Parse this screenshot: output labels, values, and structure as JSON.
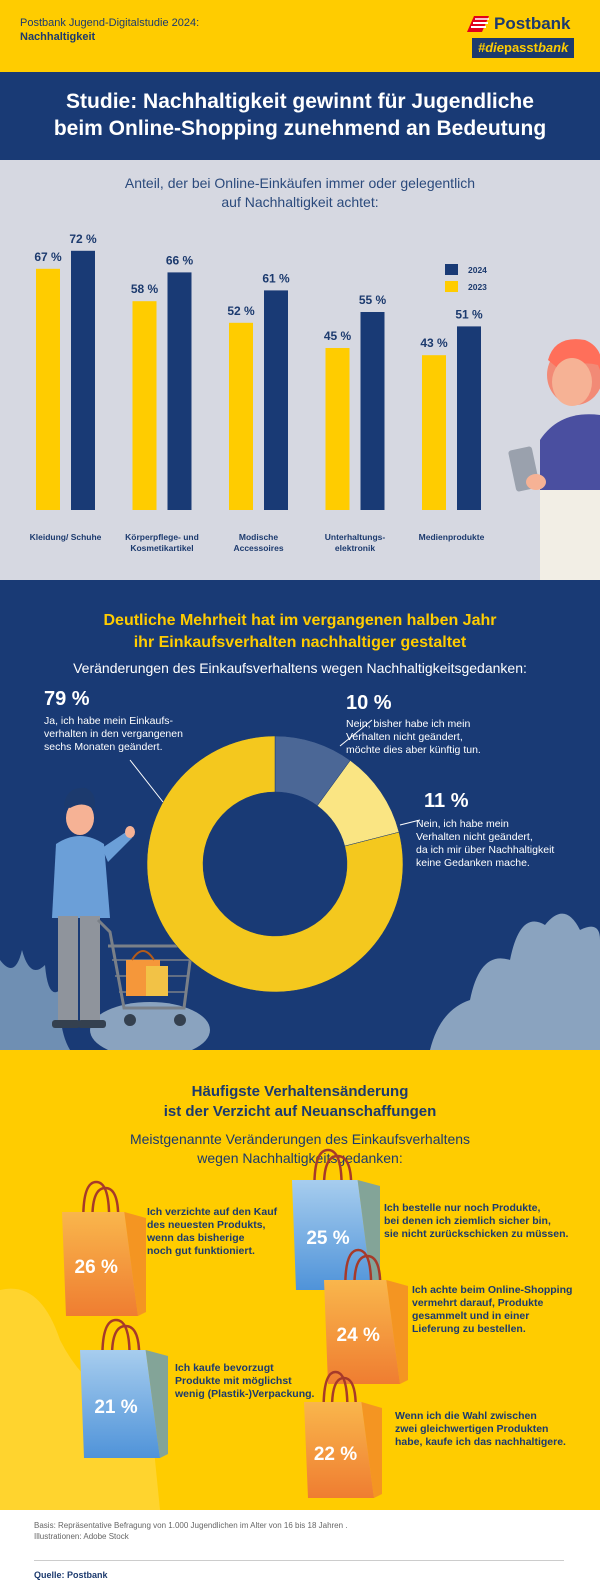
{
  "header": {
    "study": "Postbank Jugend-Digitalstudie 2024:",
    "topic": "Nachhaltigkeit",
    "logo_name": "Postbank",
    "logo_tag_pre": "#die",
    "logo_tag_bold": "passt",
    "logo_tag_post": "bank"
  },
  "title": {
    "line1": "Studie: Nachhaltigkeit gewinnt für Jugendliche",
    "line2": "beim Online-Shopping zunehmend an Bedeutung"
  },
  "section1": {
    "sub_line1": "Anteil, der bei Online-Einkäufen immer oder gelegentlich",
    "sub_line2": "auf Nachhaltigkeit achtet:"
  },
  "section2": {
    "title_line1": "Deutliche Mehrheit hat im vergangenen halben Jahr",
    "title_line2": "ihr Einkaufsverhalten nachhaltiger gestaltet",
    "sub": "Veränderungen des Einkaufsverhaltens wegen Nachhaltigkeitsgedanken:"
  },
  "section3": {
    "title_line1": "Häufigste Verhaltensänderung",
    "title_line2": "ist der Verzicht auf Neuanschaffungen",
    "sub_line1": "Meistgenannte Veränderungen des Einkaufsverhaltens",
    "sub_line2": "wegen Nachhaltigkeitsgedanken:"
  },
  "footer": {
    "basis": "Basis: Repräsentative Befragung von 1.000 Jugendlichen im Alter von 16 bis 18 Jahren .",
    "illustrations": "Illustrationen: Adobe Stock",
    "source": "Quelle: Postbank"
  },
  "colors": {
    "navy": "#193a75",
    "yellow": "#ffcc00",
    "bar2023": "#ffcc00",
    "bar2024": "#193a75",
    "donut_main": "#f4c81e",
    "donut_future": "#4b6796",
    "donut_no_thought": "#fae583"
  },
  "chart_data": [
    {
      "type": "bar",
      "title": "Anteil, der bei Online-Einkäufen immer oder gelegentlich auf Nachhaltigkeit achtet:",
      "categories": [
        [
          "Kleidung/ Schuhe"
        ],
        [
          "Körperpflege- und",
          "Kosmetikartikel"
        ],
        [
          "Modische",
          "Accessoires"
        ],
        [
          "Unterhaltungs-",
          "elektronik"
        ],
        [
          "Medienprodukte"
        ]
      ],
      "series": [
        {
          "name": "2023",
          "values": [
            67,
            58,
            52,
            45,
            43
          ]
        },
        {
          "name": "2024",
          "values": [
            72,
            66,
            61,
            55,
            51
          ]
        }
      ],
      "unit": " %",
      "ylim": [
        0,
        80
      ],
      "legend": "top-right",
      "grid": false
    },
    {
      "type": "pie",
      "title": "Veränderungen des Einkaufsverhaltens wegen Nachhaltigkeitsgedanken:",
      "slices": [
        {
          "value": 10,
          "label": "10 %",
          "lines": [
            "Nein, bisher habe ich mein",
            "Verhalten nicht geändert,",
            "möchte dies aber künftig tun."
          ]
        },
        {
          "value": 11,
          "label": "11 %",
          "lines": [
            "Nein, ich habe mein",
            "Verhalten nicht geändert,",
            "da ich mir über Nachhaltigkeit",
            "keine Gedanken mache."
          ]
        },
        {
          "value": 79,
          "label": "79 %",
          "lines": [
            "Ja, ich habe mein Einkaufs-",
            "verhalten in den vergangenen",
            "sechs Monaten geändert."
          ]
        }
      ]
    },
    {
      "type": "table",
      "title": "Meistgenannte Veränderungen des Einkaufsverhaltens wegen Nachhaltigkeitsgedanken:",
      "items": [
        {
          "value": 26,
          "label": "26 %",
          "lines": [
            "Ich verzichte auf den Kauf",
            "des neuesten Produkts,",
            "wenn das bisherige",
            "noch gut funktioniert."
          ]
        },
        {
          "value": 25,
          "label": "25 %",
          "lines": [
            "Ich bestelle nur noch Produkte,",
            "bei denen ich ziemlich sicher bin,",
            "sie nicht zurückschicken zu müssen."
          ]
        },
        {
          "value": 24,
          "label": "24 %",
          "lines": [
            "Ich achte beim Online-Shopping",
            "vermehrt darauf, Produkte",
            "gesammelt und in einer",
            "Lieferung zu bestellen."
          ]
        },
        {
          "value": 21,
          "label": "21 %",
          "lines": [
            "Ich kaufe bevorzugt",
            "Produkte mit möglichst",
            "wenig (Plastik-)Verpackung."
          ]
        },
        {
          "value": 22,
          "label": "22 %",
          "lines": [
            "Wenn ich die Wahl zwischen",
            "zwei gleichwertigen Produkten",
            "habe, kaufe ich das nachhaltigere."
          ]
        }
      ]
    }
  ]
}
